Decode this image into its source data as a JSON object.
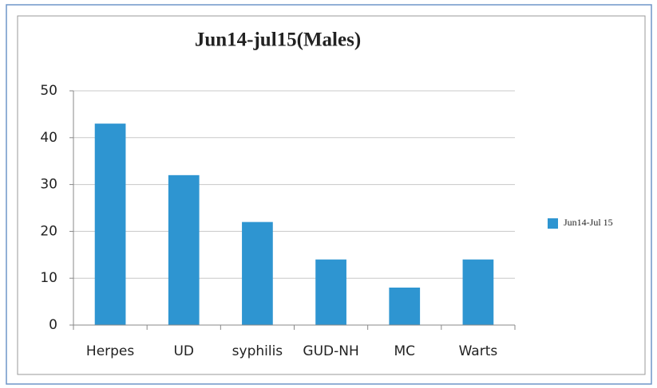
{
  "chart_data": {
    "type": "bar",
    "title": "Jun14-jul15(Males)",
    "categories": [
      "Herpes",
      "UD",
      "syphilis",
      "GUD-NH",
      "MC",
      "Warts"
    ],
    "series": [
      {
        "name": "Jun14-Jul 15",
        "color": "#2e95d1",
        "values": [
          43,
          32,
          22,
          14,
          8,
          14
        ]
      }
    ],
    "ylim": [
      0,
      50
    ],
    "yticks": [
      0,
      10,
      20,
      30,
      40,
      50
    ],
    "grid": true,
    "legend": "right"
  }
}
